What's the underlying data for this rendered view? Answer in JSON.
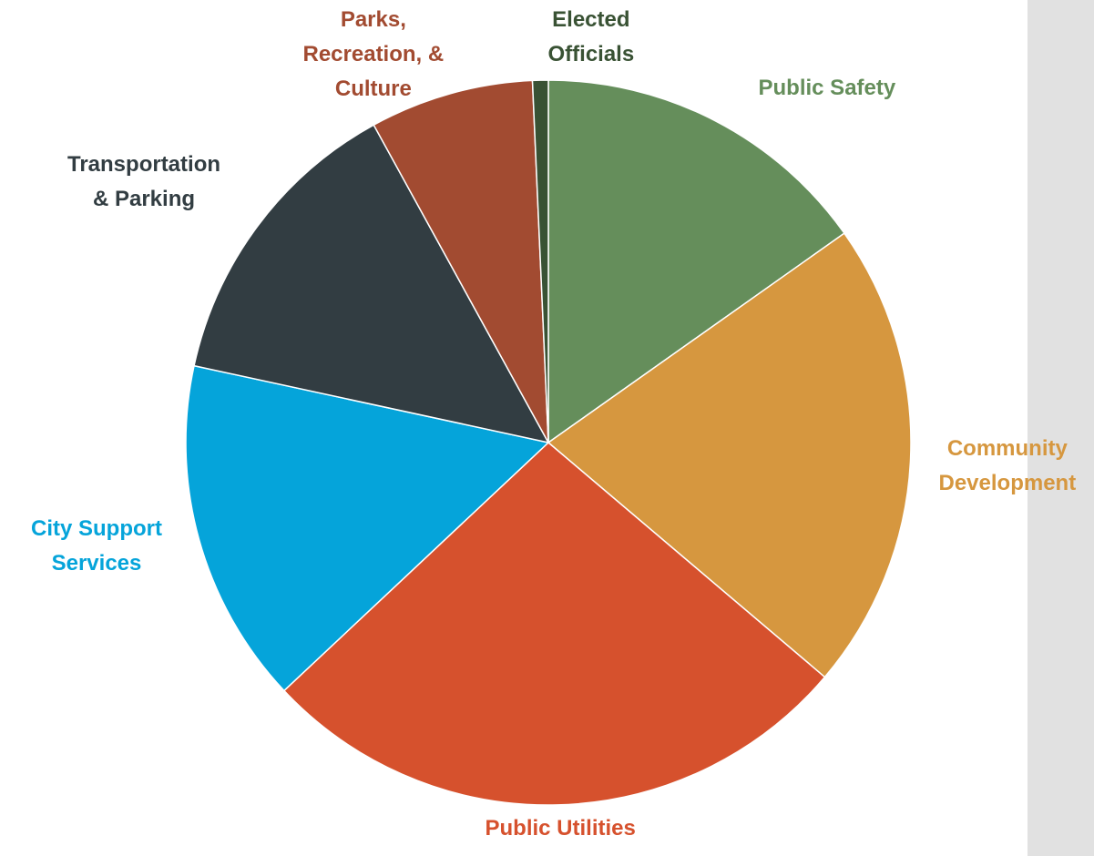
{
  "panel": {
    "color": "#e1e1e1"
  },
  "chart_data": {
    "type": "pie",
    "title": "",
    "start_angle_deg": 0,
    "slices": [
      {
        "label": [
          "Public Safety"
        ],
        "value": 15.2,
        "color": "#658e5b"
      },
      {
        "label": [
          "Community",
          "Development"
        ],
        "value": 21.0,
        "color": "#d6973f"
      },
      {
        "label": [
          "Public Utilities"
        ],
        "value": 26.8,
        "color": "#d6512d"
      },
      {
        "label": [
          "City Support",
          "Services"
        ],
        "value": 15.4,
        "color": "#05a4da"
      },
      {
        "label": [
          "Transportation",
          "& Parking"
        ],
        "value": 13.6,
        "color": "#323d42"
      },
      {
        "label": [
          "Parks,",
          "Recreation, &",
          "Culture"
        ],
        "value": 7.3,
        "color": "#a24b31"
      },
      {
        "label": [
          "Elected",
          "Officials"
        ],
        "value": 0.7,
        "color": "#395234"
      }
    ]
  }
}
